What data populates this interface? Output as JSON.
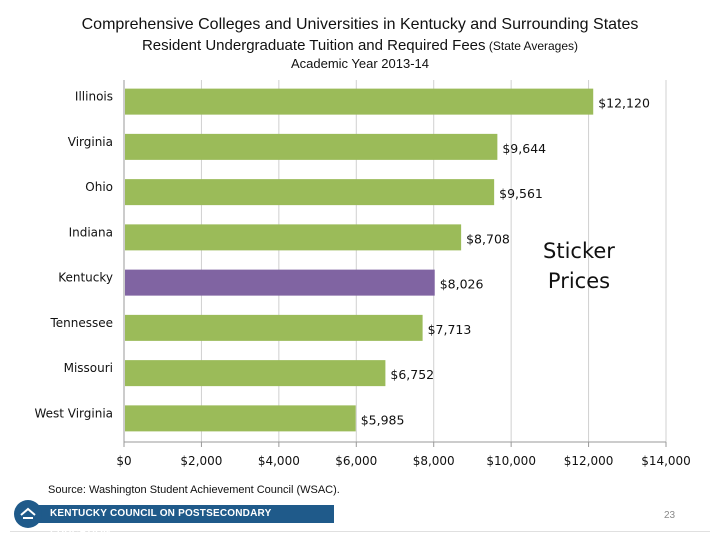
{
  "title": {
    "line1": "Comprehensive Colleges and Universities in Kentucky and Surrounding States",
    "line2_main": "Resident Undergraduate Tuition and Required Fees",
    "line2_suffix": " (State Averages)",
    "line3": "Academic Year 2013-14"
  },
  "chart_data": {
    "type": "bar",
    "orientation": "horizontal",
    "categories": [
      "Illinois",
      "Virginia",
      "Ohio",
      "Indiana",
      "Kentucky",
      "Tennessee",
      "Missouri",
      "West Virginia"
    ],
    "values": [
      12120,
      9644,
      9561,
      8708,
      8026,
      7713,
      6752,
      5985
    ],
    "value_labels": [
      "$12,120",
      "$9,644",
      "$9,561",
      "$8,708",
      "$8,026",
      "$7,713",
      "$6,752",
      "$5,985"
    ],
    "highlight": "Kentucky",
    "xlim": [
      0,
      14000
    ],
    "xticks": [
      "$0",
      "$2,000",
      "$4,000",
      "$6,000",
      "$8,000",
      "$10,000",
      "$12,000",
      "$14,000"
    ],
    "gridlines": true,
    "colors": {
      "bar": "#9bbb59",
      "highlight": "#8064a2",
      "grid": "#d0d0d0",
      "axis": "#999999"
    }
  },
  "annotation": {
    "line1": "Sticker",
    "line2": "Prices"
  },
  "source": "Source: Washington Student Achievement Council (WSAC).",
  "footer": {
    "org": "KENTUCKY COUNCIL ON POSTSECONDARY EDUCATION",
    "page": "23"
  }
}
